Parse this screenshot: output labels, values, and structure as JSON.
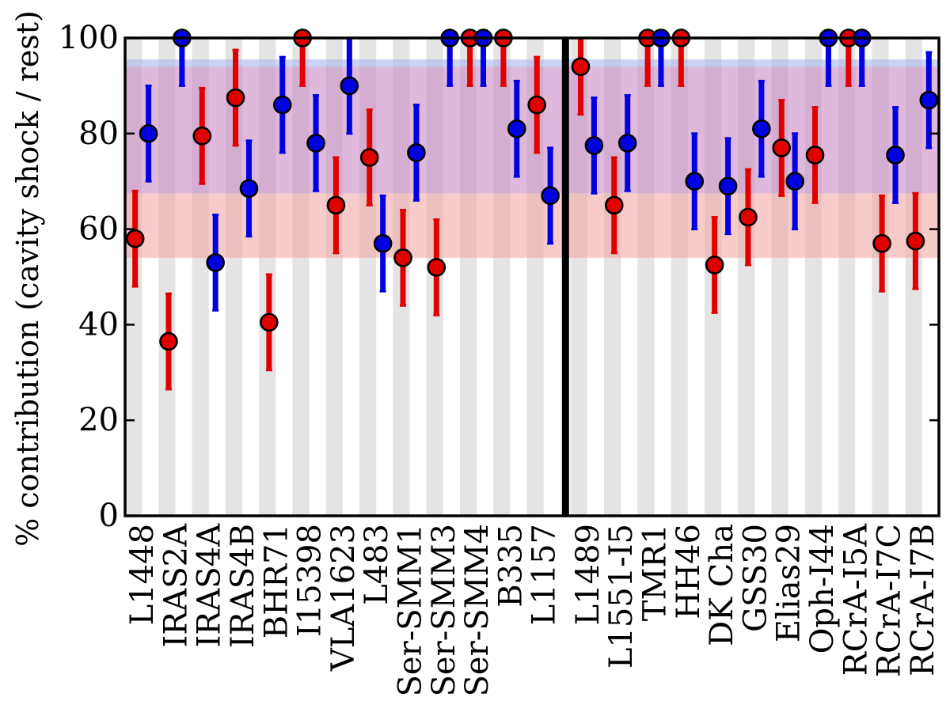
{
  "chart_data": {
    "type": "scatter",
    "ylabel": "% contribution (cavity shock / rest)",
    "ylim": [
      0,
      100
    ],
    "yticks": [
      0,
      20,
      40,
      60,
      80,
      100
    ],
    "categories": [
      "L1448",
      "IRAS2A",
      "IRAS4A",
      "IRAS4B",
      "BHR71",
      "I15398",
      "VLA1623",
      "L483",
      "Ser-SMM1",
      "Ser-SMM3",
      "Ser-SMM4",
      "B335",
      "L1157",
      "L1489",
      "L1551-I5",
      "TMR1",
      "HH46",
      "DK Cha",
      "GSS30",
      "Elias29",
      "Oph-I44",
      "RCrA-I5A",
      "RCrA-I7C",
      "RCrA-I7B"
    ],
    "group_divider_after_index": 12,
    "grid": false,
    "bands": [
      {
        "ymin": 54,
        "ymax": 67.5,
        "color": "#f4a8a8"
      },
      {
        "ymin": 67.5,
        "ymax": 94,
        "color": "#c98bc4"
      },
      {
        "ymin": 94,
        "ymax": 95.5,
        "color": "#a8b8f0"
      }
    ],
    "series": [
      {
        "color": "#e00000",
        "values": [
          58,
          36.5,
          79.5,
          87.5,
          40.5,
          100,
          65,
          75,
          54,
          52,
          100,
          100,
          86,
          94,
          65,
          100,
          100,
          52.5,
          62.5,
          77,
          75.5,
          100,
          57,
          57.5
        ],
        "errors": [
          10,
          10,
          10,
          10,
          10,
          10,
          10,
          10,
          10,
          10,
          10,
          10,
          10,
          10,
          10,
          10,
          10,
          10,
          10,
          10,
          10,
          10,
          10,
          10
        ]
      },
      {
        "color": "#0000e0",
        "values": [
          80,
          100,
          53,
          68.5,
          86,
          78,
          90,
          57,
          76,
          100,
          100,
          81,
          67,
          77.5,
          78,
          100,
          70,
          69,
          81,
          70,
          100,
          100,
          75.5,
          87
        ],
        "errors": [
          10,
          10,
          10,
          10,
          10,
          10,
          10,
          10,
          10,
          10,
          10,
          10,
          10,
          10,
          10,
          10,
          10,
          10,
          10,
          10,
          10,
          10,
          10,
          10
        ]
      }
    ]
  }
}
